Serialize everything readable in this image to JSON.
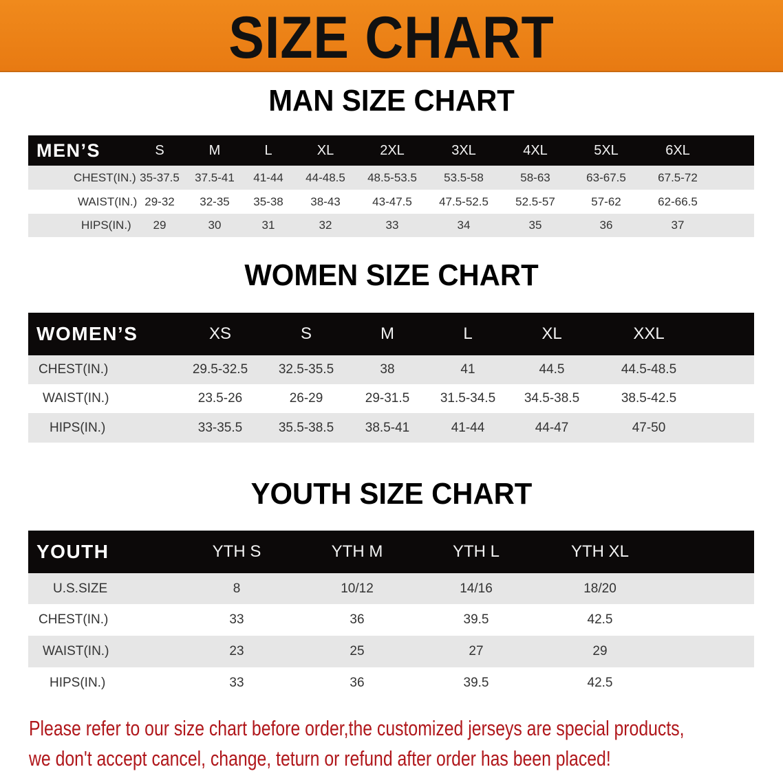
{
  "banner_title": "SIZE CHART",
  "colors": {
    "banner": "#ee8418",
    "header": "#0c0909",
    "row_shade": "#e6e6e6",
    "footer_text": "#b0171b"
  },
  "men": {
    "title": "MAN SIZE CHART",
    "header_label": "MEN’S",
    "sizes": [
      "S",
      "M",
      "L",
      "XL",
      "2XL",
      "3XL",
      "4XL",
      "5XL",
      "6XL"
    ],
    "rows": [
      {
        "label": "CHEST(IN.)",
        "values": [
          "35-37.5",
          "37.5-41",
          "41-44",
          "44-48.5",
          "48.5-53.5",
          "53.5-58",
          "58-63",
          "63-67.5",
          "67.5-72"
        ]
      },
      {
        "label": "WAIST(IN.)",
        "values": [
          "29-32",
          "32-35",
          "35-38",
          "38-43",
          "43-47.5",
          "47.5-52.5",
          "52.5-57",
          "57-62",
          "62-66.5"
        ]
      },
      {
        "label": "HIPS(IN.)",
        "values": [
          "29",
          "30",
          "31",
          "32",
          "33",
          "34",
          "35",
          "36",
          "37"
        ]
      }
    ]
  },
  "women": {
    "title": "WOMEN SIZE CHART",
    "header_label": "WOMEN’S",
    "sizes": [
      "XS",
      "S",
      "M",
      "L",
      "XL",
      "XXL"
    ],
    "rows": [
      {
        "label": "CHEST(IN.)",
        "values": [
          "29.5-32.5",
          "32.5-35.5",
          "38",
          "41",
          "44.5",
          "44.5-48.5"
        ]
      },
      {
        "label": "WAIST(IN.)",
        "values": [
          "23.5-26",
          "26-29",
          "29-31.5",
          "31.5-34.5",
          "34.5-38.5",
          "38.5-42.5"
        ]
      },
      {
        "label": "HIPS(IN.)",
        "values": [
          "33-35.5",
          "35.5-38.5",
          "38.5-41",
          "41-44",
          "44-47",
          "47-50"
        ]
      }
    ]
  },
  "youth": {
    "title": "YOUTH SIZE CHART",
    "header_label": "YOUTH",
    "sizes": [
      "YTH S",
      "YTH M",
      "YTH L",
      "YTH XL"
    ],
    "rows": [
      {
        "label": "U.S.SIZE",
        "values": [
          "8",
          "10/12",
          "14/16",
          "18/20"
        ]
      },
      {
        "label": "CHEST(IN.)",
        "values": [
          "33",
          "36",
          "39.5",
          "42.5"
        ]
      },
      {
        "label": "WAIST(IN.)",
        "values": [
          "23",
          "25",
          "27",
          "29"
        ]
      },
      {
        "label": "HIPS(IN.)",
        "values": [
          "33",
          "36",
          "39.5",
          "42.5"
        ]
      }
    ]
  },
  "footer": {
    "line1": "Please refer to our size chart before order,the customized jerseys are special products,",
    "line2": "we don't accept cancel, change, teturn or refund after order has been placed!"
  }
}
